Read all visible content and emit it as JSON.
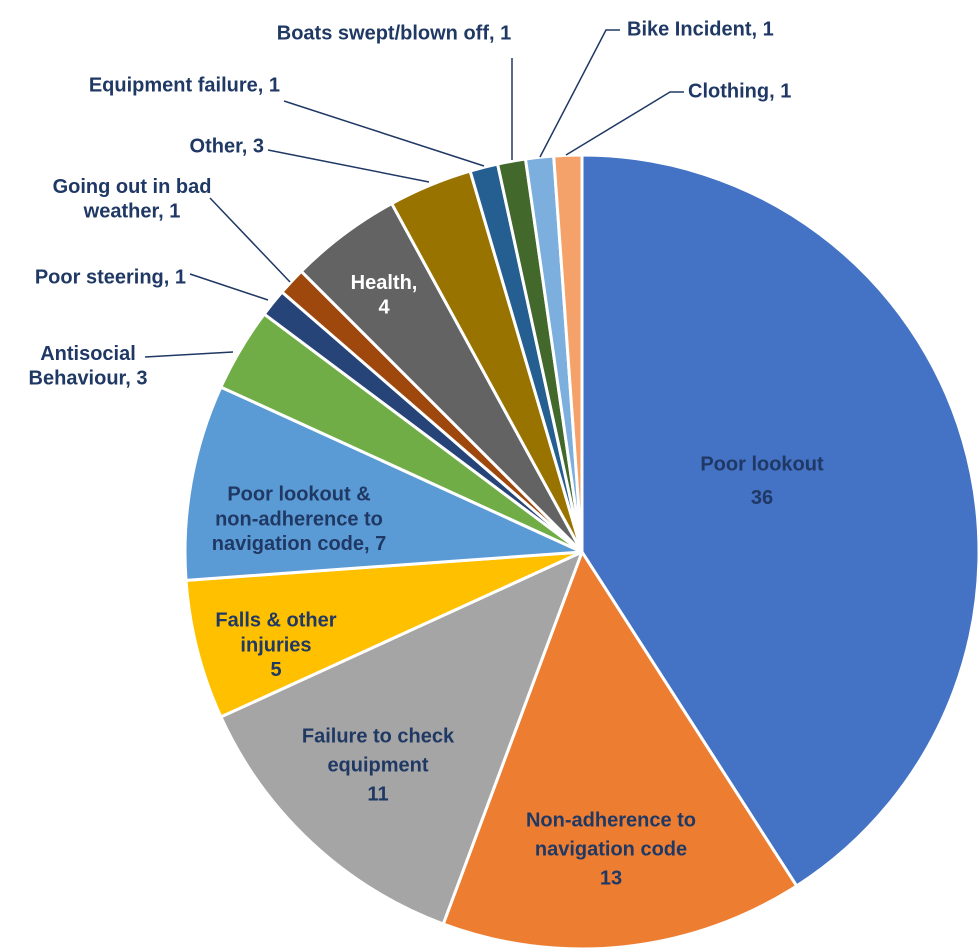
{
  "chart_data": {
    "type": "pie",
    "title": "",
    "slices": [
      {
        "name": "Poor lookout",
        "value": 36,
        "color": "#4472C4",
        "label_lines": [
          "Poor lookout",
          "36"
        ],
        "text_color": "#1F3864"
      },
      {
        "name": "Non-adherence to navigation code",
        "value": 13,
        "color": "#ED7D31",
        "label_lines": [
          "Non-adherence to",
          "navigation code",
          "13"
        ],
        "text_color": "#1F3864"
      },
      {
        "name": "Failure to check equipment",
        "value": 11,
        "color": "#A5A5A5",
        "label_lines": [
          "Failure to check",
          "equipment",
          "11"
        ],
        "text_color": "#1F3864"
      },
      {
        "name": "Falls & other injuries",
        "value": 5,
        "color": "#FFC000",
        "label_lines": [
          "Falls & other",
          "injuries",
          "5"
        ],
        "text_color": "#1F3864"
      },
      {
        "name": "Poor lookout & non-adherence to navigation code",
        "value": 7,
        "color": "#5B9BD5",
        "label_lines": [
          "Poor lookout &",
          "non-adherence to",
          "navigation code, 7"
        ],
        "text_color": "#1F3864"
      },
      {
        "name": "Antisocial Behaviour",
        "value": 3,
        "color": "#70AD47",
        "label_lines": [
          "Antisocial",
          "Behaviour, 3"
        ],
        "text_color": "#1F3864"
      },
      {
        "name": "Poor steering",
        "value": 1,
        "color": "#264478",
        "label_lines": [
          "Poor steering, 1"
        ],
        "text_color": "#1F3864"
      },
      {
        "name": "Going out in bad weather",
        "value": 1,
        "color": "#9E480E",
        "label_lines": [
          "Going out in bad",
          "weather, 1"
        ],
        "text_color": "#1F3864"
      },
      {
        "name": "Health",
        "value": 4,
        "color": "#636363",
        "label_lines": [
          "Health,",
          "4"
        ],
        "text_color": "#FFFFFF"
      },
      {
        "name": "Other",
        "value": 3,
        "color": "#997300",
        "label_lines": [
          "Other, 3"
        ],
        "text_color": "#1F3864"
      },
      {
        "name": "Equipment failure",
        "value": 1,
        "color": "#255E91",
        "label_lines": [
          "Equipment failure, 1"
        ],
        "text_color": "#1F3864"
      },
      {
        "name": "Boats swept/blown off",
        "value": 1,
        "color": "#43682B",
        "label_lines": [
          "Boats swept/blown off, 1"
        ],
        "text_color": "#1F3864"
      },
      {
        "name": "Bike Incident",
        "value": 1,
        "color": "#7CAFDD",
        "label_lines": [
          "Bike Incident, 1"
        ],
        "text_color": "#1F3864"
      },
      {
        "name": "Clothing",
        "value": 1,
        "color": "#F4A26A",
        "label_lines": [
          "Clothing, 1"
        ],
        "text_color": "#1F3864"
      }
    ],
    "start": "12 o'clock",
    "direction": "clockwise",
    "legend": "none",
    "leader_line_color": "#1F3864"
  }
}
